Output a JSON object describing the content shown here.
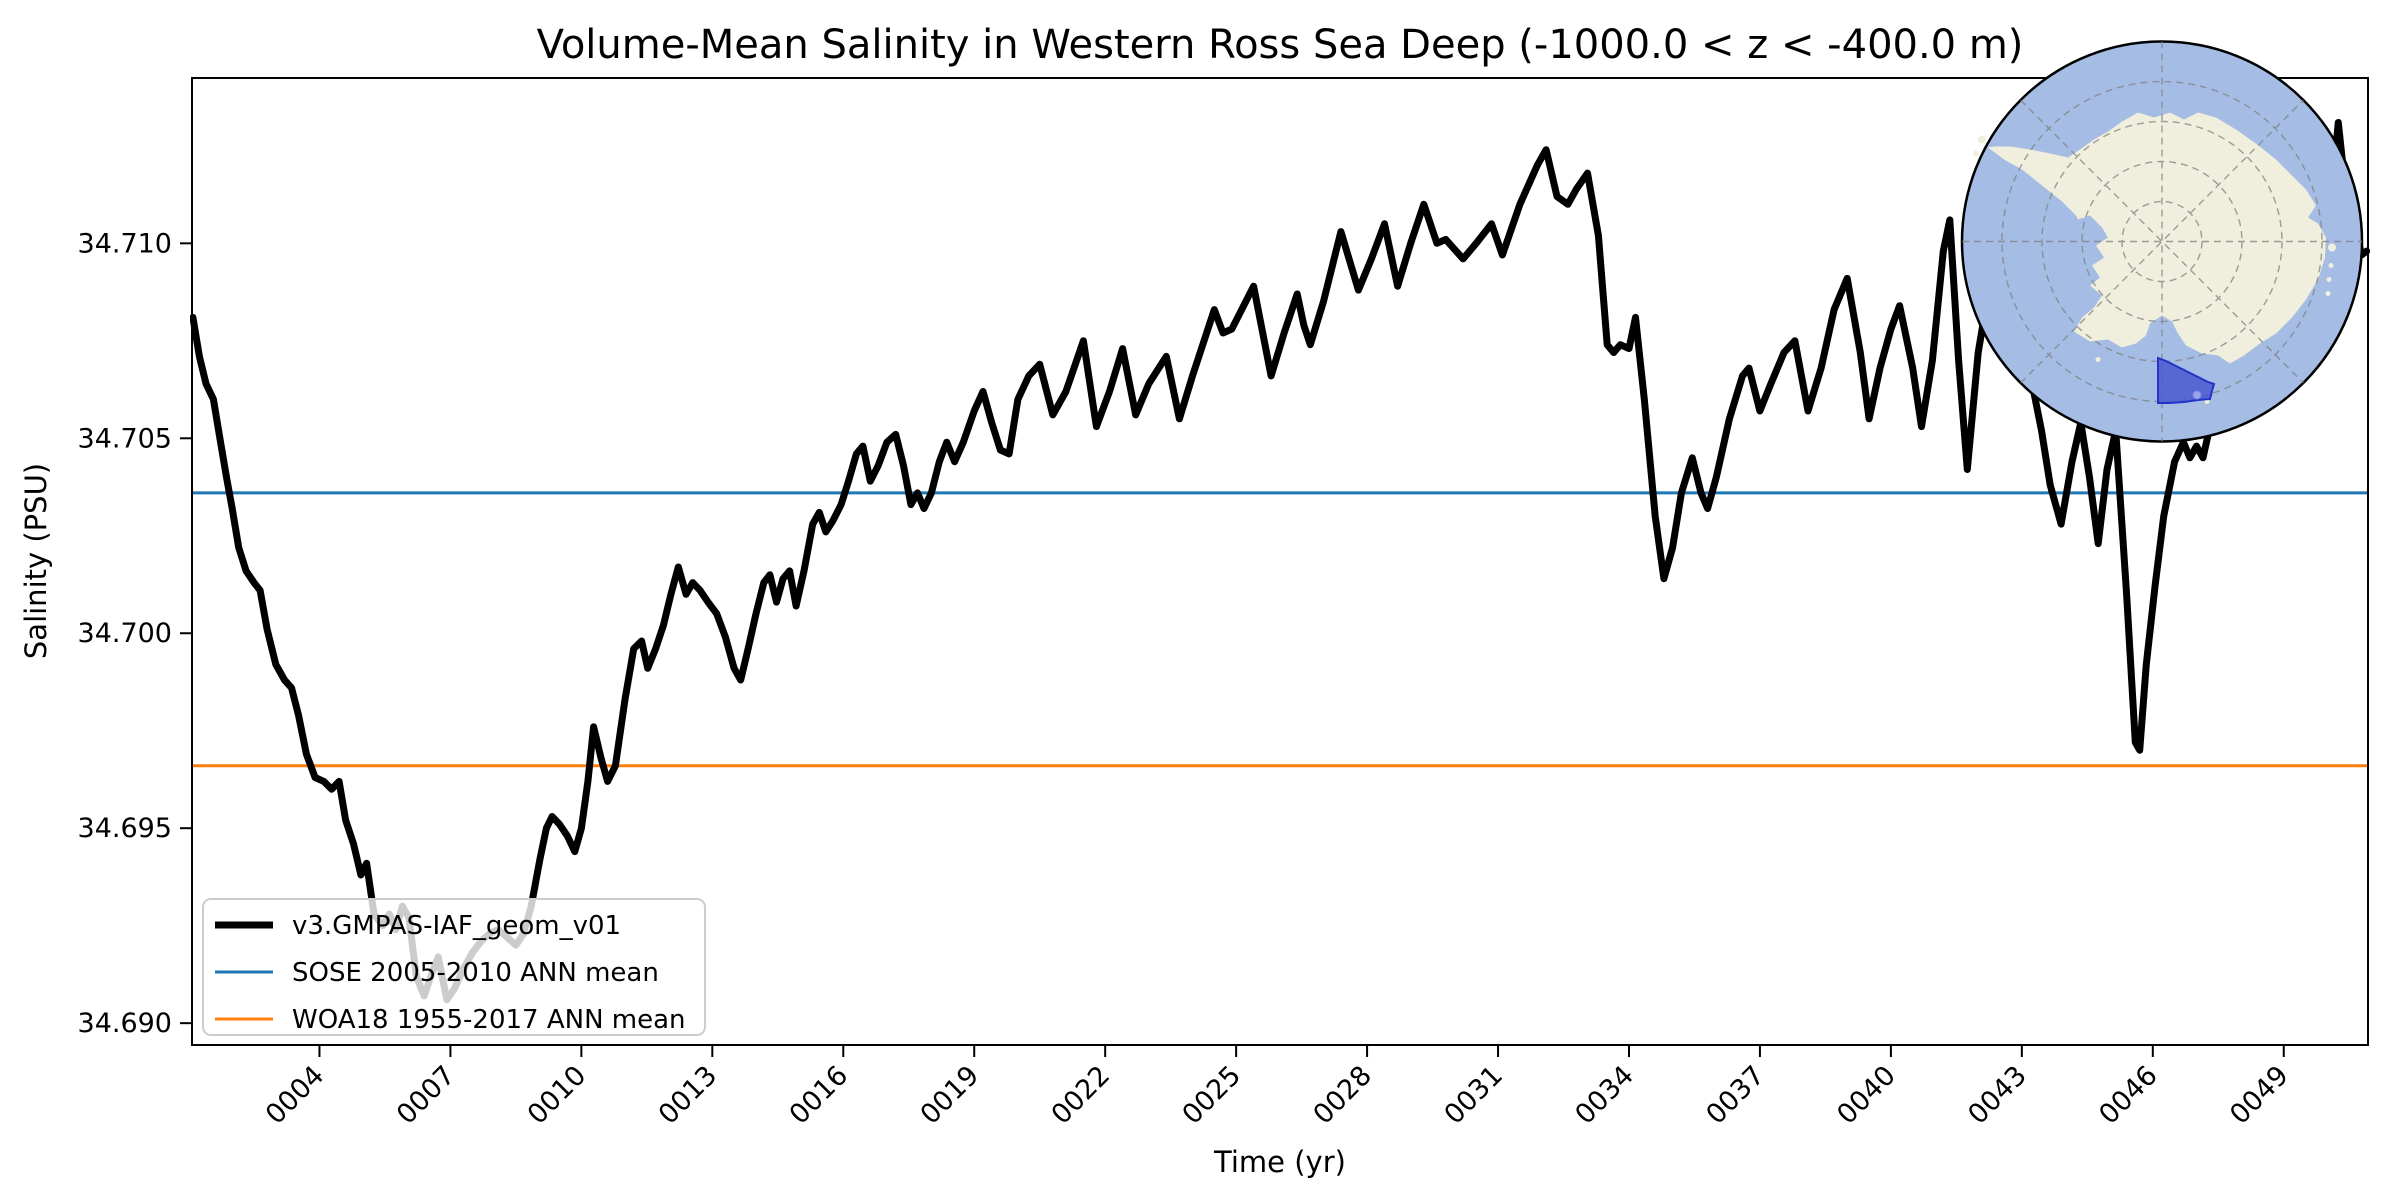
{
  "title": "Volume-Mean Salinity in Western Ross Sea Deep (-1000.0 < z < -400.0 m)",
  "xlabel": "Time (yr)",
  "ylabel": "Salinity (PSU)",
  "legend": {
    "items": [
      {
        "label": "v3.GMPAS-IAF_geom_v01",
        "color": "#000000",
        "line_width": 7
      },
      {
        "label": "SOSE 2005-2010 ANN mean",
        "color": "#1f77b4",
        "line_width": 3
      },
      {
        "label": "WOA18 1955-2017 ANN mean",
        "color": "#ff7f0e",
        "line_width": 3
      }
    ]
  },
  "colors": {
    "curve": "#000000",
    "sose_line": "#1f77b4",
    "woa_line": "#ff7f0e",
    "spine": "#000000",
    "legend_edge": "#cccccc",
    "inset_ocean": "#a5bce4",
    "inset_land": "#f0eedc",
    "inset_graticule": "#808080",
    "inset_region_fill": "#4353d0",
    "inset_region_edge": "#2433c8",
    "inset_marker": "#9aa4ec"
  },
  "inset": {
    "name": "antarctica-locator-map",
    "region_name": "Western Ross Sea highlighted region"
  },
  "chart_data": {
    "type": "line",
    "title": "Volume-Mean Salinity in Western Ross Sea Deep (-1000.0 < z < -400.0 m)",
    "xlabel": "Time (yr)",
    "ylabel": "Salinity (PSU)",
    "xlim": [
      1.08,
      50.93
    ],
    "ylim": [
      34.68944,
      34.71424
    ],
    "grid": false,
    "legend_position": "lower left",
    "xticks": {
      "values": [
        4,
        7,
        10,
        13,
        16,
        19,
        22,
        25,
        28,
        31,
        34,
        37,
        40,
        43,
        46,
        49
      ],
      "labels": [
        "0004",
        "0007",
        "0010",
        "0013",
        "0016",
        "0019",
        "0022",
        "0025",
        "0028",
        "0031",
        "0034",
        "0037",
        "0040",
        "0043",
        "0046",
        "0049"
      ]
    },
    "yticks": {
      "values": [
        34.69,
        34.695,
        34.7,
        34.705,
        34.71
      ],
      "labels": [
        "34.690",
        "34.695",
        "34.700",
        "34.705",
        "34.710"
      ]
    },
    "reference_lines": [
      {
        "name": "SOSE 2005-2010 ANN mean",
        "value": 34.7036,
        "color": "#1f77b4"
      },
      {
        "name": "WOA18 1955-2017 ANN mean",
        "value": 34.6966,
        "color": "#ff7f0e"
      }
    ],
    "series": [
      {
        "name": "v3.GMPAS-IAF_geom_v01",
        "color": "#000000",
        "x": [
          1.1,
          1.25,
          1.4,
          1.57,
          1.72,
          1.87,
          2.0,
          2.15,
          2.32,
          2.5,
          2.64,
          2.8,
          3.0,
          3.2,
          3.36,
          3.52,
          3.7,
          3.9,
          4.1,
          4.28,
          4.45,
          4.6,
          4.78,
          4.95,
          5.08,
          5.25,
          5.45,
          5.6,
          5.75,
          5.9,
          6.05,
          6.22,
          6.4,
          6.55,
          6.72,
          6.92,
          7.1,
          7.3,
          7.5,
          7.7,
          7.9,
          8.1,
          8.3,
          8.5,
          8.68,
          8.85,
          9.05,
          9.2,
          9.33,
          9.5,
          9.68,
          9.85,
          10.0,
          10.15,
          10.28,
          10.45,
          10.6,
          10.78,
          11.0,
          11.2,
          11.38,
          11.52,
          11.7,
          11.88,
          12.05,
          12.22,
          12.4,
          12.55,
          12.72,
          12.9,
          13.1,
          13.3,
          13.5,
          13.65,
          13.82,
          14.0,
          14.18,
          14.32,
          14.47,
          14.62,
          14.77,
          14.92,
          15.1,
          15.3,
          15.45,
          15.6,
          15.77,
          15.95,
          16.12,
          16.3,
          16.45,
          16.62,
          16.8,
          17.0,
          17.2,
          17.38,
          17.55,
          17.7,
          17.85,
          18.02,
          18.2,
          18.37,
          18.55,
          18.75,
          19.0,
          19.2,
          19.4,
          19.6,
          19.8,
          20.0,
          20.25,
          20.5,
          20.8,
          21.1,
          21.5,
          21.8,
          22.1,
          22.4,
          22.7,
          23.0,
          23.4,
          23.7,
          24.0,
          24.5,
          24.7,
          24.9,
          25.4,
          25.8,
          26.1,
          26.4,
          26.55,
          26.7,
          27.0,
          27.4,
          27.8,
          28.1,
          28.4,
          28.7,
          29.0,
          29.3,
          29.6,
          29.8,
          30.2,
          30.5,
          30.85,
          31.1,
          31.5,
          31.9,
          32.1,
          32.35,
          32.6,
          32.8,
          33.05,
          33.3,
          33.5,
          33.65,
          33.8,
          34.0,
          34.15,
          34.35,
          34.6,
          34.8,
          35.0,
          35.2,
          35.45,
          35.65,
          35.8,
          36.0,
          36.3,
          36.6,
          36.75,
          37.0,
          37.25,
          37.55,
          37.8,
          38.1,
          38.4,
          38.7,
          39.0,
          39.3,
          39.5,
          39.75,
          40.0,
          40.2,
          40.5,
          40.7,
          40.95,
          41.2,
          41.35,
          41.55,
          41.75,
          42.0,
          42.3,
          42.6,
          42.9,
          43.2,
          43.45,
          43.65,
          43.9,
          44.15,
          44.35,
          44.55,
          44.75,
          44.95,
          45.15,
          45.4,
          45.6,
          45.7,
          45.85,
          46.05,
          46.25,
          46.5,
          46.7,
          46.85,
          47.0,
          47.15,
          47.35,
          47.6,
          47.85,
          48.1,
          48.4,
          48.7,
          49.0,
          49.3,
          49.6,
          49.9,
          50.05,
          50.25,
          50.45,
          50.55,
          50.65,
          50.78,
          50.9
        ],
        "y": [
          34.7081,
          34.7071,
          34.7064,
          34.706,
          34.705,
          34.704,
          34.7032,
          34.7022,
          34.7016,
          34.7013,
          34.7011,
          34.7001,
          34.6992,
          34.6988,
          34.6986,
          34.6979,
          34.6969,
          34.6963,
          34.6962,
          34.696,
          34.6962,
          34.6952,
          34.6946,
          34.6938,
          34.6941,
          34.6928,
          34.6925,
          34.6928,
          34.6924,
          34.693,
          34.6927,
          34.6912,
          34.6907,
          34.6912,
          34.6917,
          34.6906,
          34.6909,
          34.6914,
          34.6918,
          34.6921,
          34.6923,
          34.6924,
          34.6922,
          34.692,
          34.6923,
          34.693,
          34.6942,
          34.695,
          34.6953,
          34.6951,
          34.6948,
          34.6944,
          34.695,
          34.6962,
          34.6976,
          34.6968,
          34.6962,
          34.6966,
          34.6983,
          34.6996,
          34.6998,
          34.6991,
          34.6996,
          34.7002,
          34.701,
          34.7017,
          34.701,
          34.7013,
          34.7011,
          34.7008,
          34.7005,
          34.6999,
          34.6991,
          34.6988,
          34.6996,
          34.7005,
          34.7013,
          34.7015,
          34.7008,
          34.7014,
          34.7016,
          34.7007,
          34.7016,
          34.7028,
          34.7031,
          34.7026,
          34.7029,
          34.7033,
          34.7039,
          34.7046,
          34.7048,
          34.7039,
          34.7043,
          34.7049,
          34.7051,
          34.7043,
          34.7033,
          34.7036,
          34.7032,
          34.7036,
          34.7044,
          34.7049,
          34.7044,
          34.7049,
          34.7057,
          34.7062,
          34.7054,
          34.7047,
          34.7046,
          34.706,
          34.7066,
          34.7069,
          34.7056,
          34.7062,
          34.7075,
          34.7053,
          34.7062,
          34.7073,
          34.7056,
          34.7064,
          34.7071,
          34.7055,
          34.7066,
          34.7083,
          34.7077,
          34.7078,
          34.7089,
          34.7066,
          34.7077,
          34.7087,
          34.7079,
          34.7074,
          34.7085,
          34.7103,
          34.7088,
          34.7096,
          34.7105,
          34.7089,
          34.71,
          34.711,
          34.71,
          34.7101,
          34.7096,
          34.71,
          34.7105,
          34.7097,
          34.711,
          34.712,
          34.7124,
          34.7112,
          34.711,
          34.7114,
          34.7118,
          34.7102,
          34.7074,
          34.7072,
          34.7074,
          34.7073,
          34.7081,
          34.706,
          34.703,
          34.7014,
          34.7022,
          34.7036,
          34.7045,
          34.7036,
          34.7032,
          34.704,
          34.7055,
          34.7066,
          34.7068,
          34.7057,
          34.7064,
          34.7072,
          34.7075,
          34.7057,
          34.7068,
          34.7083,
          34.7091,
          34.7072,
          34.7055,
          34.7068,
          34.7078,
          34.7084,
          34.7068,
          34.7053,
          34.707,
          34.7098,
          34.7106,
          34.707,
          34.7042,
          34.7072,
          34.7092,
          34.7082,
          34.7076,
          34.7066,
          34.7052,
          34.7038,
          34.7028,
          34.7044,
          34.7054,
          34.704,
          34.7023,
          34.7042,
          34.7052,
          34.701,
          34.6972,
          34.697,
          34.6992,
          34.7012,
          34.703,
          34.7044,
          34.7049,
          34.7045,
          34.7048,
          34.7045,
          34.7055,
          34.706,
          34.707,
          34.7064,
          34.7077,
          34.707,
          34.7084,
          34.7077,
          34.7092,
          34.7087,
          34.7108,
          34.7131,
          34.711,
          34.7101,
          34.7104,
          34.7097,
          34.7098
        ]
      }
    ]
  }
}
